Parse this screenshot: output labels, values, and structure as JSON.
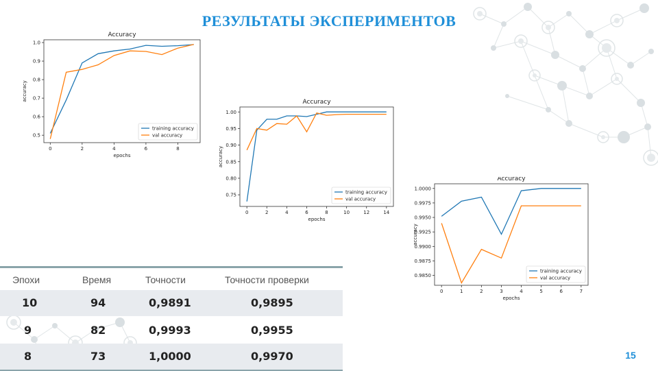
{
  "slide": {
    "title": "РЕЗУЛЬТАТЫ ЭКСПЕРИМЕНТОВ",
    "page_number": "15",
    "accent_color": "#1f8fd8"
  },
  "table": {
    "headers": [
      "Эпохи",
      "Время",
      "Точности",
      "Точности проверки"
    ],
    "rows": [
      [
        "10",
        "94",
        "0,9891",
        "0,9895"
      ],
      [
        "9",
        "82",
        "0,9993",
        "0,9955"
      ],
      [
        "8",
        "73",
        "1,0000",
        "0,9970"
      ]
    ]
  },
  "chart_data": [
    {
      "type": "line",
      "title": "Accuracy",
      "xlabel": "epochs",
      "ylabel": "accuracy",
      "xlim": [
        -0.4,
        9.4
      ],
      "ylim": [
        0.46,
        1.015
      ],
      "xticks": [
        0,
        2,
        4,
        6,
        8
      ],
      "yticks": [
        0.5,
        0.6,
        0.7,
        0.8,
        0.9,
        1.0
      ],
      "ytick_labels": [
        "0.5",
        "0.6",
        "0.7",
        "0.8",
        "0.9",
        "1.0"
      ],
      "legend": "lower-right",
      "series": [
        {
          "name": "training accuracy",
          "color": "#1f77b4",
          "x": [
            0,
            1,
            2,
            3,
            4,
            5,
            6,
            7,
            8,
            9
          ],
          "y": [
            0.51,
            0.69,
            0.89,
            0.94,
            0.955,
            0.965,
            0.985,
            0.98,
            0.983,
            0.989
          ]
        },
        {
          "name": "val accuracy",
          "color": "#ff7f0e",
          "x": [
            0,
            1,
            2,
            3,
            4,
            5,
            6,
            7,
            8,
            9
          ],
          "y": [
            0.48,
            0.84,
            0.855,
            0.88,
            0.93,
            0.955,
            0.952,
            0.935,
            0.97,
            0.99
          ]
        }
      ]
    },
    {
      "type": "line",
      "title": "Accuracy",
      "xlabel": "epochs",
      "ylabel": "accuracy",
      "xlim": [
        -0.7,
        14.7
      ],
      "ylim": [
        0.715,
        1.015
      ],
      "xticks": [
        0,
        2,
        4,
        6,
        8,
        10,
        12,
        14
      ],
      "yticks": [
        0.75,
        0.8,
        0.85,
        0.9,
        0.95,
        1.0
      ],
      "ytick_labels": [
        "0.75",
        "0.80",
        "0.85",
        "0.90",
        "0.95",
        "1.00"
      ],
      "legend": "lower-right",
      "series": [
        {
          "name": "training accuracy",
          "color": "#1f77b4",
          "x": [
            0,
            1,
            2,
            3,
            4,
            5,
            6,
            7,
            8,
            9,
            10,
            11,
            12,
            13,
            14
          ],
          "y": [
            0.73,
            0.945,
            0.978,
            0.978,
            0.988,
            0.988,
            0.986,
            0.993,
            1.0,
            1.0,
            1.0,
            1.0,
            1.0,
            1.0,
            1.0
          ]
        },
        {
          "name": "val accuracy",
          "color": "#ff7f0e",
          "x": [
            0,
            1,
            2,
            3,
            4,
            5,
            6,
            7,
            8,
            9,
            10,
            11,
            12,
            13,
            14
          ],
          "y": [
            0.885,
            0.95,
            0.945,
            0.965,
            0.963,
            0.988,
            0.94,
            0.997,
            0.99,
            0.992,
            0.993,
            0.993,
            0.993,
            0.993,
            0.993
          ]
        }
      ]
    },
    {
      "type": "line",
      "title": "Accuracy",
      "xlabel": "epochs",
      "ylabel": "accuracy",
      "xlim": [
        -0.35,
        7.35
      ],
      "ylim": [
        0.9833,
        1.0008
      ],
      "xticks": [
        0,
        1,
        2,
        3,
        4,
        5,
        6,
        7
      ],
      "yticks": [
        0.985,
        0.9875,
        0.99,
        0.9925,
        0.995,
        0.9975,
        1.0
      ],
      "ytick_labels": [
        "0.9850",
        "0.9875",
        "0.9900",
        "0.9925",
        "0.9950",
        "0.9975",
        "1.0000"
      ],
      "legend": "lower-right",
      "series": [
        {
          "name": "training accuracy",
          "color": "#1f77b4",
          "x": [
            0,
            1,
            2,
            3,
            4,
            5,
            6,
            7
          ],
          "y": [
            0.9952,
            0.9978,
            0.9985,
            0.9921,
            0.9996,
            1.0,
            1.0,
            1.0
          ]
        },
        {
          "name": "val accuracy",
          "color": "#ff7f0e",
          "x": [
            0,
            1,
            2,
            3,
            4,
            5,
            6,
            7
          ],
          "y": [
            0.994,
            0.9837,
            0.9895,
            0.988,
            0.997,
            0.997,
            0.997,
            0.997
          ]
        }
      ]
    }
  ]
}
